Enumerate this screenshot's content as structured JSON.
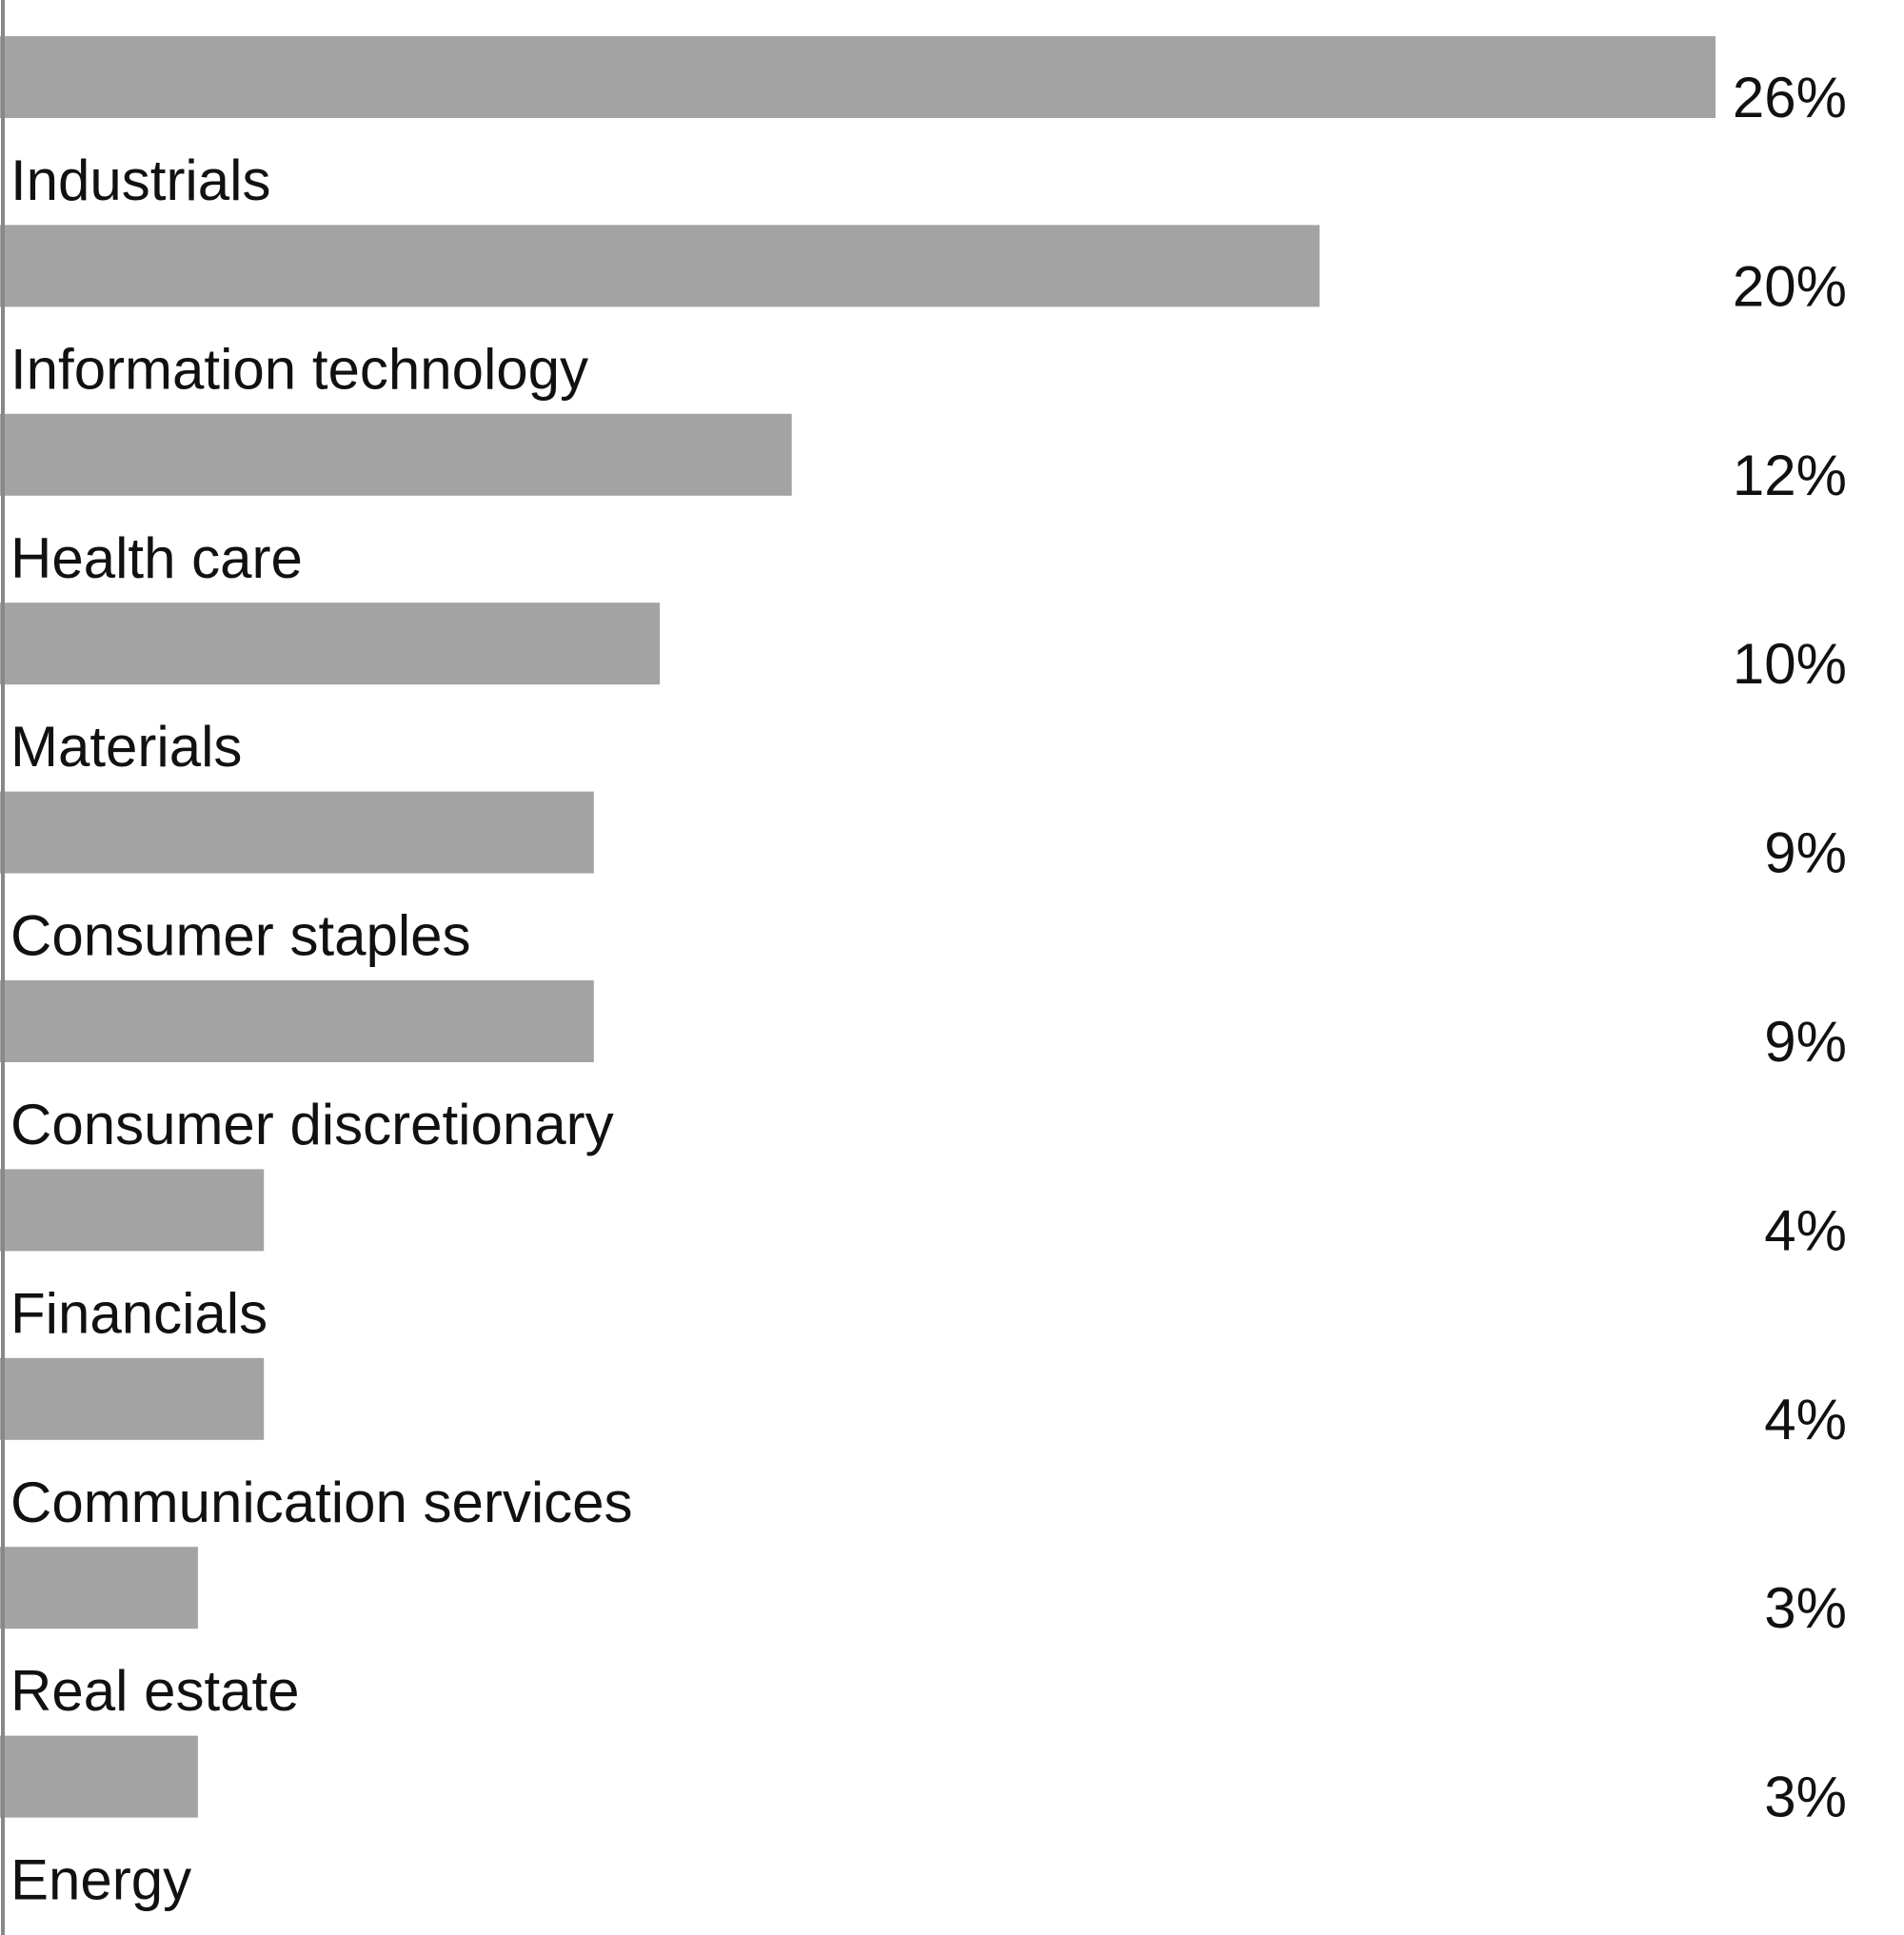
{
  "chart_data": {
    "type": "bar",
    "orientation": "horizontal",
    "categories": [
      "Industrials",
      "Information technology",
      "Health care",
      "Materials",
      "Consumer staples",
      "Consumer discretionary",
      "Financials",
      "Communication services",
      "Real estate",
      "Energy"
    ],
    "values": [
      26,
      20,
      12,
      10,
      9,
      9,
      4,
      4,
      3,
      3
    ],
    "value_labels": [
      "26%",
      "20%",
      "12%",
      "10%",
      "9%",
      "9%",
      "4%",
      "4%",
      "3%",
      "3%"
    ],
    "unit": "%",
    "title": "",
    "xlabel": "",
    "ylabel": "",
    "xlim": [
      0,
      26
    ],
    "grid": false,
    "legend": "none",
    "colors": {
      "bar": "#a3a3a3",
      "axis": "#888888",
      "text": "#111111"
    }
  }
}
